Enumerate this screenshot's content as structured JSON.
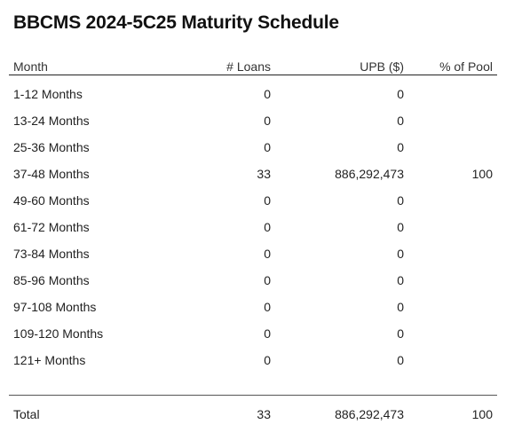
{
  "title": "BBCMS 2024-5C25 Maturity Schedule",
  "chart_data": {
    "type": "table",
    "columns": [
      "Month",
      "# Loans",
      "UPB ($)",
      "% of Pool"
    ],
    "rows": [
      {
        "month": "1-12 Months",
        "loans": "0",
        "upb": "0",
        "pct": ""
      },
      {
        "month": "13-24 Months",
        "loans": "0",
        "upb": "0",
        "pct": ""
      },
      {
        "month": "25-36 Months",
        "loans": "0",
        "upb": "0",
        "pct": ""
      },
      {
        "month": "37-48 Months",
        "loans": "33",
        "upb": "886,292,473",
        "pct": "100"
      },
      {
        "month": "49-60 Months",
        "loans": "0",
        "upb": "0",
        "pct": ""
      },
      {
        "month": "61-72 Months",
        "loans": "0",
        "upb": "0",
        "pct": ""
      },
      {
        "month": "73-84 Months",
        "loans": "0",
        "upb": "0",
        "pct": ""
      },
      {
        "month": "85-96 Months",
        "loans": "0",
        "upb": "0",
        "pct": ""
      },
      {
        "month": "97-108 Months",
        "loans": "0",
        "upb": "0",
        "pct": ""
      },
      {
        "month": "109-120 Months",
        "loans": "0",
        "upb": "0",
        "pct": ""
      },
      {
        "month": "121+ Months",
        "loans": "0",
        "upb": "0",
        "pct": ""
      }
    ],
    "total": {
      "month": "Total",
      "loans": "33",
      "upb": "886,292,473",
      "pct": "100"
    }
  }
}
